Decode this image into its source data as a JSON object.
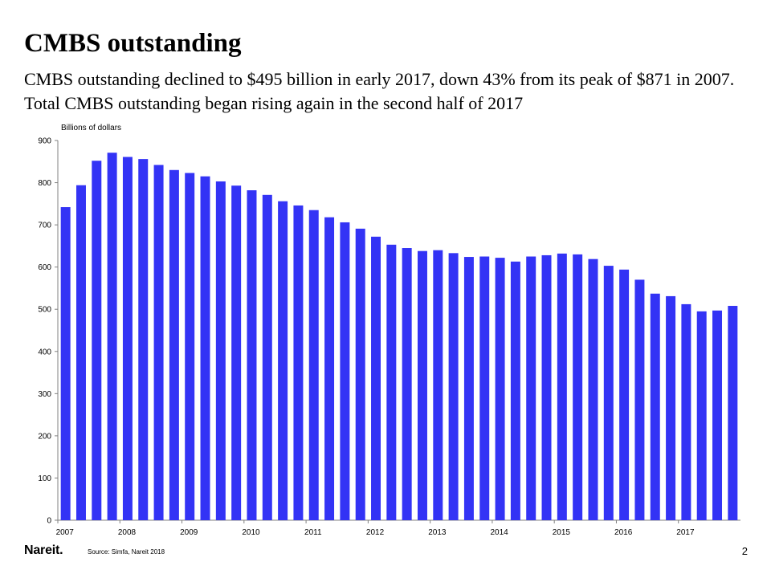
{
  "slide": {
    "title": "CMBS outstanding",
    "subtitle": "CMBS outstanding declined to $495 billion in early 2017, down 43% from its peak of $871 in 2007. Total CMBS outstanding began rising again in the second half of 2017",
    "logo": "Nareit.",
    "source": "Source: Simfa, Nareit 2018",
    "page_number": "2"
  },
  "colors": {
    "bar": "#3333f5",
    "axis": "#808080"
  },
  "chart_data": {
    "type": "bar",
    "ylabel": "Billions of dollars",
    "ylim": [
      0,
      900
    ],
    "yticks": [
      0,
      100,
      200,
      300,
      400,
      500,
      600,
      700,
      800,
      900
    ],
    "x_tick_labels": [
      {
        "label": "2007",
        "index": 0
      },
      {
        "label": "2008",
        "index": 4
      },
      {
        "label": "2009",
        "index": 8
      },
      {
        "label": "2010",
        "index": 12
      },
      {
        "label": "2011",
        "index": 16
      },
      {
        "label": "2012",
        "index": 20
      },
      {
        "label": "2013",
        "index": 24
      },
      {
        "label": "2014",
        "index": 28
      },
      {
        "label": "2015",
        "index": 32
      },
      {
        "label": "2016",
        "index": 36
      },
      {
        "label": "2017",
        "index": 40
      }
    ],
    "categories": [
      "2007 Q1",
      "2007 Q2",
      "2007 Q3",
      "2007 Q4",
      "2008 Q1",
      "2008 Q2",
      "2008 Q3",
      "2008 Q4",
      "2009 Q1",
      "2009 Q2",
      "2009 Q3",
      "2009 Q4",
      "2010 Q1",
      "2010 Q2",
      "2010 Q3",
      "2010 Q4",
      "2011 Q1",
      "2011 Q2",
      "2011 Q3",
      "2011 Q4",
      "2012 Q1",
      "2012 Q2",
      "2012 Q3",
      "2012 Q4",
      "2013 Q1",
      "2013 Q2",
      "2013 Q3",
      "2013 Q4",
      "2014 Q1",
      "2014 Q2",
      "2014 Q3",
      "2014 Q4",
      "2015 Q1",
      "2015 Q2",
      "2015 Q3",
      "2015 Q4",
      "2016 Q1",
      "2016 Q2",
      "2016 Q3",
      "2016 Q4",
      "2017 Q1",
      "2017 Q2",
      "2017 Q3",
      "2017 Q4"
    ],
    "values": [
      742,
      794,
      852,
      871,
      861,
      856,
      842,
      830,
      823,
      815,
      803,
      793,
      782,
      771,
      756,
      746,
      735,
      718,
      706,
      691,
      672,
      653,
      645,
      638,
      640,
      633,
      624,
      625,
      622,
      613,
      625,
      628,
      632,
      630,
      619,
      603,
      594,
      570,
      537,
      531,
      512,
      495,
      497,
      508
    ],
    "grid": false
  }
}
